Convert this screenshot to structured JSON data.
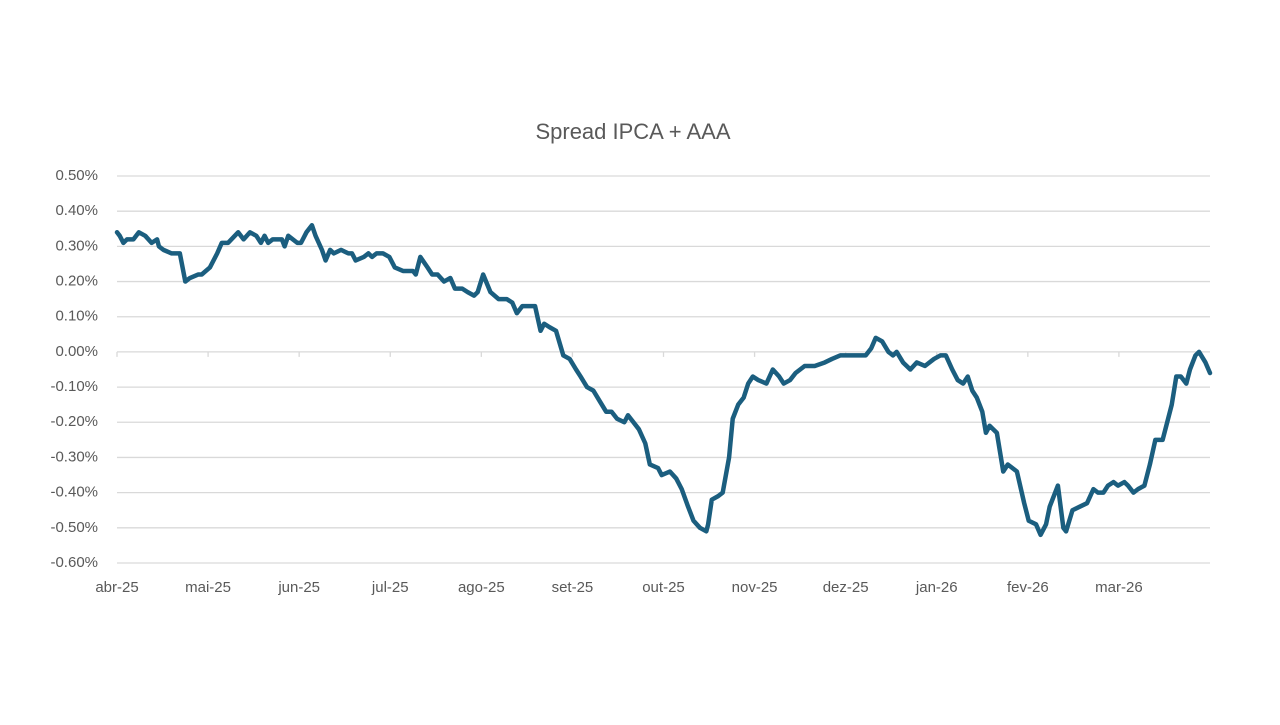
{
  "chart_data": {
    "type": "line",
    "title": "Spread IPCA + AAA",
    "x": [
      0,
      0.03,
      0.07,
      0.11,
      0.18,
      0.24,
      0.31,
      0.38,
      0.44,
      0.46,
      0.51,
      0.6,
      0.69,
      0.75,
      0.8,
      0.89,
      0.93,
      1.02,
      1.1,
      1.15,
      1.22,
      1.33,
      1.39,
      1.46,
      1.53,
      1.58,
      1.62,
      1.66,
      1.71,
      1.81,
      1.84,
      1.88,
      1.98,
      2.02,
      2.08,
      2.14,
      2.18,
      2.25,
      2.29,
      2.34,
      2.38,
      2.46,
      2.54,
      2.58,
      2.62,
      2.71,
      2.76,
      2.8,
      2.85,
      2.92,
      2.99,
      3.05,
      3.14,
      3.25,
      3.28,
      3.33,
      3.41,
      3.46,
      3.52,
      3.59,
      3.66,
      3.71,
      3.79,
      3.85,
      3.92,
      3.96,
      4.02,
      4.1,
      4.19,
      4.28,
      4.34,
      4.39,
      4.45,
      4.52,
      4.59,
      4.65,
      4.69,
      4.75,
      4.82,
      4.9,
      4.97,
      5.04,
      5.09,
      5.16,
      5.23,
      5.3,
      5.37,
      5.43,
      5.49,
      5.57,
      5.61,
      5.67,
      5.73,
      5.8,
      5.85,
      5.94,
      5.98,
      6.07,
      6.14,
      6.2,
      6.27,
      6.33,
      6.4,
      6.47,
      6.49,
      6.53,
      6.6,
      6.65,
      6.72,
      6.76,
      6.82,
      6.88,
      6.93,
      6.98,
      7.04,
      7.13,
      7.2,
      7.27,
      7.32,
      7.39,
      7.45,
      7.55,
      7.66,
      7.77,
      7.85,
      7.94,
      8.01,
      8.08,
      8.11,
      8.16,
      8.22,
      8.28,
      8.33,
      8.4,
      8.47,
      8.52,
      8.56,
      8.63,
      8.71,
      8.78,
      8.87,
      8.97,
      9.04,
      9.1,
      9.17,
      9.23,
      9.29,
      9.34,
      9.39,
      9.44,
      9.5,
      9.54,
      9.58,
      9.66,
      9.73,
      9.78,
      9.88,
      9.96,
      10.01,
      10.09,
      10.14,
      10.2,
      10.24,
      10.33,
      10.39,
      10.42,
      10.49,
      10.57,
      10.65,
      10.72,
      10.77,
      10.83,
      10.88,
      10.94,
      10.99,
      11.06,
      11.1,
      11.16,
      11.21,
      11.28,
      11.34,
      11.4,
      11.48,
      11.53,
      11.58,
      11.63,
      11.68,
      11.74,
      11.78,
      11.84,
      11.88,
      11.95,
      12
    ],
    "values": [
      0.34,
      0.33,
      0.31,
      0.32,
      0.32,
      0.34,
      0.33,
      0.31,
      0.32,
      0.3,
      0.29,
      0.28,
      0.28,
      0.2,
      0.21,
      0.22,
      0.22,
      0.24,
      0.28,
      0.31,
      0.31,
      0.34,
      0.32,
      0.34,
      0.33,
      0.31,
      0.33,
      0.31,
      0.32,
      0.32,
      0.3,
      0.33,
      0.31,
      0.31,
      0.34,
      0.36,
      0.33,
      0.29,
      0.26,
      0.29,
      0.28,
      0.29,
      0.28,
      0.28,
      0.26,
      0.27,
      0.28,
      0.27,
      0.28,
      0.28,
      0.27,
      0.24,
      0.23,
      0.23,
      0.22,
      0.27,
      0.24,
      0.22,
      0.22,
      0.2,
      0.21,
      0.18,
      0.18,
      0.17,
      0.16,
      0.17,
      0.22,
      0.17,
      0.15,
      0.15,
      0.14,
      0.11,
      0.13,
      0.13,
      0.13,
      0.06,
      0.08,
      0.07,
      0.06,
      -0.01,
      -0.02,
      -0.05,
      -0.07,
      -0.1,
      -0.11,
      -0.14,
      -0.17,
      -0.17,
      -0.19,
      -0.2,
      -0.18,
      -0.2,
      -0.22,
      -0.26,
      -0.32,
      -0.33,
      -0.35,
      -0.34,
      -0.36,
      -0.39,
      -0.44,
      -0.48,
      -0.5,
      -0.51,
      -0.49,
      -0.42,
      -0.41,
      -0.4,
      -0.3,
      -0.19,
      -0.15,
      -0.13,
      -0.09,
      -0.07,
      -0.08,
      -0.09,
      -0.05,
      -0.07,
      -0.09,
      -0.08,
      -0.06,
      -0.04,
      -0.04,
      -0.03,
      -0.02,
      -0.01,
      -0.01,
      -0.01,
      -0.01,
      -0.01,
      -0.01,
      0.01,
      0.04,
      0.03,
      0,
      -0.01,
      0,
      -0.03,
      -0.05,
      -0.03,
      -0.04,
      -0.02,
      -0.01,
      -0.01,
      -0.05,
      -0.08,
      -0.09,
      -0.07,
      -0.11,
      -0.13,
      -0.17,
      -0.23,
      -0.21,
      -0.23,
      -0.34,
      -0.32,
      -0.34,
      -0.43,
      -0.48,
      -0.49,
      -0.52,
      -0.49,
      -0.44,
      -0.38,
      -0.5,
      -0.51,
      -0.45,
      -0.44,
      -0.43,
      -0.39,
      -0.4,
      -0.4,
      -0.38,
      -0.37,
      -0.38,
      -0.37,
      -0.38,
      -0.4,
      -0.39,
      -0.38,
      -0.32,
      -0.25,
      -0.25,
      -0.2,
      -0.15,
      -0.07,
      -0.07,
      -0.09,
      -0.05,
      -0.01,
      0,
      -0.03,
      -0.06
    ],
    "color": "#1b5e7f",
    "xlim": [
      0,
      12
    ],
    "xticks": [
      {
        "value": 0,
        "label": "abr-25"
      },
      {
        "value": 1,
        "label": "mai-25"
      },
      {
        "value": 2,
        "label": "jun-25"
      },
      {
        "value": 3,
        "label": "jul-25"
      },
      {
        "value": 4,
        "label": "ago-25"
      },
      {
        "value": 5,
        "label": "set-25"
      },
      {
        "value": 6,
        "label": "out-25"
      },
      {
        "value": 7,
        "label": "nov-25"
      },
      {
        "value": 8,
        "label": "dez-25"
      },
      {
        "value": 9,
        "label": "jan-26"
      },
      {
        "value": 10,
        "label": "fev-26"
      },
      {
        "value": 11,
        "label": "mar-26"
      }
    ],
    "ylim": [
      -0.6,
      0.5
    ],
    "yticks": [
      {
        "value": 0.5,
        "label": "0.50%"
      },
      {
        "value": 0.4,
        "label": "0.40%"
      },
      {
        "value": 0.3,
        "label": "0.30%"
      },
      {
        "value": 0.2,
        "label": "0.20%"
      },
      {
        "value": 0.1,
        "label": "0.10%"
      },
      {
        "value": 0,
        "label": "0.00%"
      },
      {
        "value": -0.1,
        "label": "-0.10%"
      },
      {
        "value": -0.2,
        "label": "-0.20%"
      },
      {
        "value": -0.3,
        "label": "-0.30%"
      },
      {
        "value": -0.4,
        "label": "-0.40%"
      },
      {
        "value": -0.5,
        "label": "-0.50%"
      },
      {
        "value": -0.6,
        "label": "-0.60%"
      }
    ],
    "grid": true
  }
}
